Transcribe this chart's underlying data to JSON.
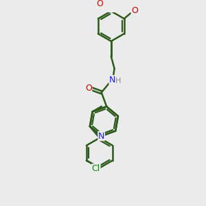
{
  "bg_color": "#ebebeb",
  "bond_color": "#2d5a1b",
  "bond_width": 1.8,
  "atom_colors": {
    "N": "#1a1aff",
    "O": "#cc0000",
    "Cl": "#008800",
    "H": "#888888"
  },
  "font_size": 9
}
